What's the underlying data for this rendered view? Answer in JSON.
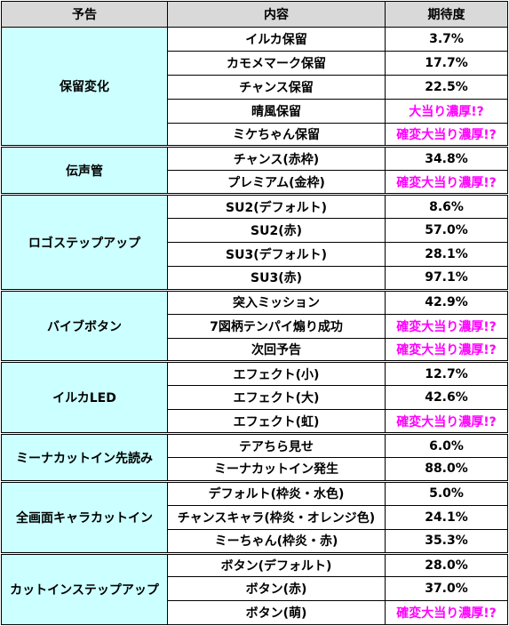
{
  "headers": [
    "予告",
    "内容",
    "期待度"
  ],
  "colors": {
    "header_bg": "#d9d9d9",
    "group_bg": "#ccffff",
    "special_text": "#ff00ff",
    "border": "#000000"
  },
  "groups": [
    {
      "name": "保留変化",
      "rows": [
        {
          "content": "イルカ保留",
          "expect": "3.7%",
          "special": false
        },
        {
          "content": "カモメマーク保留",
          "expect": "17.7%",
          "special": false
        },
        {
          "content": "チャンス保留",
          "expect": "22.5%",
          "special": false
        },
        {
          "content": "晴風保留",
          "expect": "大当り濃厚!?",
          "special": true
        },
        {
          "content": "ミケちゃん保留",
          "expect": "確変大当り濃厚!?",
          "special": true
        }
      ]
    },
    {
      "name": "伝声管",
      "rows": [
        {
          "content": "チャンス(赤枠)",
          "expect": "34.8%",
          "special": false
        },
        {
          "content": "プレミアム(金枠)",
          "expect": "確変大当り濃厚!?",
          "special": true
        }
      ]
    },
    {
      "name": "ロゴステップアップ",
      "rows": [
        {
          "content": "SU2(デフォルト)",
          "expect": "8.6%",
          "special": false
        },
        {
          "content": "SU2(赤)",
          "expect": "57.0%",
          "special": false
        },
        {
          "content": "SU3(デフォルト)",
          "expect": "28.1%",
          "special": false
        },
        {
          "content": "SU3(赤)",
          "expect": "97.1%",
          "special": false
        }
      ]
    },
    {
      "name": "バイブボタン",
      "rows": [
        {
          "content": "突入ミッション",
          "expect": "42.9%",
          "special": false
        },
        {
          "content": "7図柄テンパイ煽り成功",
          "expect": "確変大当り濃厚!?",
          "special": true
        },
        {
          "content": "次回予告",
          "expect": "確変大当り濃厚!?",
          "special": true
        }
      ]
    },
    {
      "name": "イルカLED",
      "rows": [
        {
          "content": "エフェクト(小)",
          "expect": "12.7%",
          "special": false
        },
        {
          "content": "エフェクト(大)",
          "expect": "42.6%",
          "special": false
        },
        {
          "content": "エフェクト(虹)",
          "expect": "確変大当り濃厚!?",
          "special": true
        }
      ]
    },
    {
      "name": "ミーナカットイン先読み",
      "rows": [
        {
          "content": "テアちら見せ",
          "expect": "6.0%",
          "special": false
        },
        {
          "content": "ミーナカットイン発生",
          "expect": "88.0%",
          "special": false
        }
      ]
    },
    {
      "name": "全画面キャラカットイン",
      "rows": [
        {
          "content": "デフォルト(枠炎・水色)",
          "expect": "5.0%",
          "special": false
        },
        {
          "content": "チャンスキャラ(枠炎・オレンジ色)",
          "expect": "24.1%",
          "special": false
        },
        {
          "content": "ミーちゃん(枠炎・赤)",
          "expect": "35.3%",
          "special": false
        }
      ]
    },
    {
      "name": "カットインステップアップ",
      "rows": [
        {
          "content": "ボタン(デフォルト)",
          "expect": "28.0%",
          "special": false
        },
        {
          "content": "ボタン(赤)",
          "expect": "37.0%",
          "special": false
        },
        {
          "content": "ボタン(萌)",
          "expect": "確変大当り濃厚!?",
          "special": true
        }
      ]
    }
  ]
}
